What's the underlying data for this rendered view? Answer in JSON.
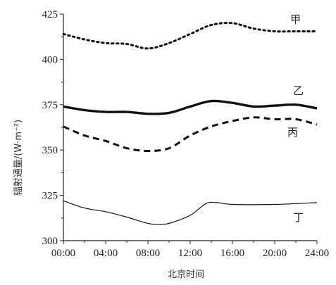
{
  "chart_data": {
    "type": "line",
    "title": "",
    "xlabel": "北京时间",
    "ylabel": "辐射通量/(W·m⁻²)",
    "x_ticks": [
      "00:00",
      "04:00",
      "08:00",
      "12:00",
      "16:00",
      "20:00",
      "24:00"
    ],
    "y_ticks": [
      300,
      325,
      350,
      375,
      400,
      425
    ],
    "xlim": [
      0,
      24
    ],
    "ylim": [
      300,
      425
    ],
    "grid": false,
    "series": [
      {
        "name": "甲",
        "style": "dotted",
        "color": "#111111",
        "x": [
          0,
          2,
          4,
          6,
          8,
          10,
          12,
          14,
          16,
          18,
          20,
          22,
          24
        ],
        "y": [
          414,
          411,
          409,
          408.5,
          406,
          409,
          414,
          419,
          420,
          417,
          415.5,
          415.5,
          415.5
        ]
      },
      {
        "name": "乙",
        "style": "thick-solid",
        "color": "#111111",
        "x": [
          0,
          2,
          4,
          6,
          8,
          10,
          12,
          14,
          16,
          18,
          20,
          22,
          24
        ],
        "y": [
          374,
          372,
          371,
          371,
          370,
          370.5,
          374,
          377,
          376,
          374,
          374.5,
          375,
          373
        ]
      },
      {
        "name": "丙",
        "style": "dashed",
        "color": "#111111",
        "x": [
          0,
          2,
          4,
          6,
          8,
          10,
          12,
          14,
          16,
          18,
          20,
          22,
          24
        ],
        "y": [
          363,
          358,
          355,
          351,
          349.5,
          351,
          358,
          363,
          366,
          368,
          367,
          367,
          364
        ]
      },
      {
        "name": "丁",
        "style": "thin-solid",
        "color": "#111111",
        "x": [
          0,
          2,
          4,
          6,
          8,
          9,
          10,
          12,
          13.5,
          14.5,
          16,
          20,
          24
        ],
        "y": [
          322,
          318,
          316,
          313,
          309.5,
          309,
          309.5,
          314,
          320.5,
          321,
          320,
          320,
          321
        ]
      }
    ]
  }
}
